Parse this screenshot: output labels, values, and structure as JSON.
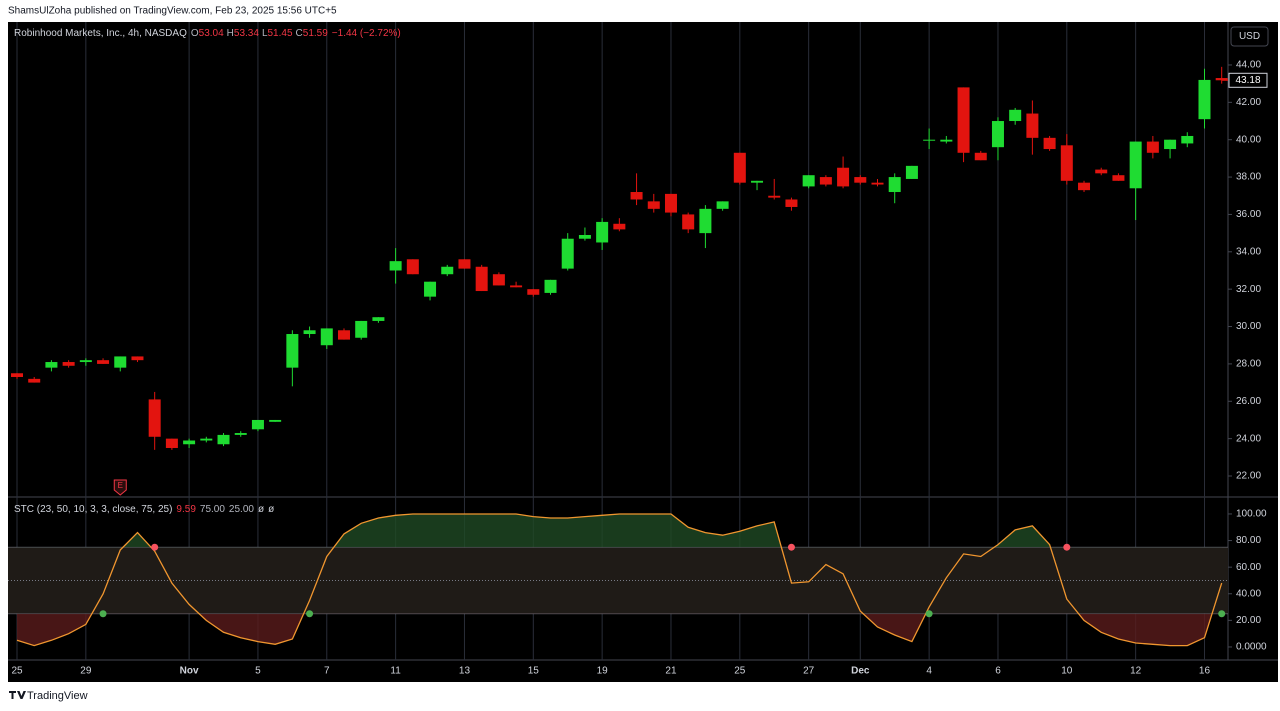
{
  "published": "ShamsUlZoha published on TradingView.com, Feb 23, 2025 15:56 UTC+5",
  "currency": "USD",
  "brand": "TradingView",
  "chart_data": [
    {
      "type": "candlestick",
      "title": "Robinhood Markets, Inc., 4h, NASDAQ",
      "ohlc_legend": [
        {
          "label": "O",
          "value": "53.04"
        },
        {
          "label": "H",
          "value": "53.34"
        },
        {
          "label": "L",
          "value": "51.45"
        },
        {
          "label": "C",
          "value": "51.59"
        }
      ],
      "change": "−1.44 (−2.72%)",
      "up_color": "#1fdc32",
      "down_color": "#e3140f",
      "categories": [
        "25",
        null,
        null,
        null,
        "29",
        null,
        null,
        null,
        null,
        null,
        "Nov",
        null,
        null,
        null,
        "5",
        null,
        null,
        null,
        "7",
        null,
        null,
        null,
        "11",
        null,
        null,
        null,
        "13",
        null,
        null,
        null,
        "15",
        null,
        null,
        null,
        "19",
        null,
        null,
        null,
        "21",
        null,
        null,
        null,
        "25",
        null,
        null,
        null,
        "27",
        null,
        null,
        "Dec",
        null,
        null,
        null,
        "4",
        null,
        null,
        null,
        "6",
        null,
        null,
        null,
        "10",
        null,
        null,
        null,
        "12",
        null,
        null,
        null,
        "16",
        null
      ],
      "open": [
        27.5,
        27.2,
        27.8,
        28.1,
        28.1,
        28.2,
        27.8,
        28.4,
        26.1,
        24.0,
        23.7,
        23.9,
        23.7,
        24.2,
        24.5,
        24.9,
        27.8,
        29.6,
        29.0,
        29.8,
        29.4,
        30.3,
        33.0,
        33.6,
        31.6,
        32.8,
        33.6,
        33.2,
        32.8,
        32.2,
        32.0,
        31.8,
        33.1,
        34.7,
        34.5,
        35.5,
        37.2,
        36.7,
        37.1,
        36.0,
        35.0,
        36.3,
        39.3,
        37.7,
        37.0,
        36.8,
        37.5,
        38.0,
        38.5,
        38.0,
        37.7,
        37.2,
        37.9,
        40.0,
        39.9,
        42.8,
        39.3,
        39.6,
        41.0,
        41.4,
        40.1,
        39.7,
        37.7,
        38.4,
        38.1,
        37.4,
        39.9,
        39.5,
        39.8,
        41.1,
        43.3
      ],
      "high": [
        27.5,
        27.3,
        28.2,
        28.2,
        28.3,
        28.3,
        28.4,
        28.4,
        26.5,
        24.0,
        24.0,
        24.1,
        24.3,
        24.4,
        25.0,
        25.0,
        29.8,
        30.0,
        29.9,
        29.9,
        30.3,
        30.5,
        34.2,
        33.6,
        32.4,
        33.3,
        33.6,
        33.3,
        32.9,
        32.4,
        32.0,
        32.5,
        35.0,
        35.3,
        35.8,
        35.8,
        38.2,
        37.1,
        37.1,
        36.1,
        36.5,
        36.7,
        39.3,
        37.8,
        37.9,
        36.9,
        38.1,
        38.1,
        39.1,
        38.1,
        37.9,
        38.2,
        38.6,
        40.6,
        40.2,
        42.8,
        39.4,
        41.2,
        41.7,
        42.1,
        40.2,
        40.3,
        37.8,
        38.5,
        38.2,
        39.9,
        40.2,
        40.0,
        40.4,
        43.8,
        43.9
      ],
      "low": [
        27.2,
        27.0,
        27.6,
        27.8,
        27.9,
        28.0,
        27.6,
        28.1,
        23.4,
        23.4,
        23.5,
        23.8,
        23.6,
        24.1,
        24.4,
        24.9,
        26.8,
        29.4,
        28.8,
        29.3,
        29.3,
        30.2,
        32.3,
        32.8,
        31.4,
        32.7,
        33.1,
        31.9,
        32.2,
        32.1,
        31.6,
        31.7,
        33.0,
        34.6,
        34.1,
        35.1,
        36.5,
        36.1,
        35.9,
        35.0,
        34.2,
        36.2,
        37.6,
        37.3,
        36.8,
        36.2,
        37.4,
        37.5,
        37.4,
        37.6,
        37.5,
        36.6,
        37.9,
        39.5,
        39.8,
        38.8,
        38.9,
        38.9,
        40.8,
        39.2,
        39.4,
        37.6,
        37.2,
        38.1,
        37.8,
        35.7,
        39.0,
        39.0,
        39.6,
        40.6,
        43.0
      ],
      "close": [
        27.3,
        27.0,
        28.1,
        27.9,
        28.2,
        28.0,
        28.4,
        28.2,
        24.1,
        23.5,
        23.9,
        24.0,
        24.2,
        24.3,
        25.0,
        25.0,
        29.6,
        29.8,
        29.9,
        29.3,
        30.3,
        30.5,
        33.5,
        32.8,
        32.4,
        33.2,
        33.1,
        31.9,
        32.2,
        32.1,
        31.7,
        32.5,
        34.7,
        34.9,
        35.6,
        35.2,
        36.8,
        36.3,
        36.1,
        35.2,
        36.3,
        36.7,
        37.7,
        37.8,
        36.9,
        36.4,
        38.1,
        37.6,
        37.5,
        37.7,
        37.6,
        38.0,
        38.6,
        40.0,
        40.0,
        39.3,
        38.9,
        41.0,
        41.6,
        40.1,
        39.5,
        37.8,
        37.3,
        38.2,
        37.8,
        39.9,
        39.3,
        40.0,
        40.2,
        43.2,
        43.18
      ],
      "last_price": 43.18,
      "earnings_marker": "E",
      "earnings_index": 6,
      "ylim": [
        20.93,
        46.3
      ],
      "yticks": [
        {
          "value": 22,
          "label": "22.00"
        },
        {
          "value": 24,
          "label": "24.00"
        },
        {
          "value": 26,
          "label": "26.00"
        },
        {
          "value": 28,
          "label": "28.00"
        },
        {
          "value": 30,
          "label": "30.00"
        },
        {
          "value": 32,
          "label": "32.00"
        },
        {
          "value": 34,
          "label": "34.00"
        },
        {
          "value": 36,
          "label": "36.00"
        },
        {
          "value": 38,
          "label": "38.00"
        },
        {
          "value": 40,
          "label": "40.00"
        },
        {
          "value": 42,
          "label": "42.00"
        },
        {
          "value": 44,
          "label": "44.00"
        }
      ]
    },
    {
      "type": "line",
      "title": "STC (23, 50, 10, 3, 3, close, 75, 25)",
      "legend_values": [
        "9.59",
        "75.00",
        "25.00",
        "ø",
        "ø"
      ],
      "color": "#f0962f",
      "values": [
        5,
        1,
        5,
        10,
        17,
        40,
        73,
        86,
        72,
        48,
        32,
        20,
        11,
        7,
        4,
        2,
        6,
        35,
        68,
        85,
        93,
        97,
        99,
        100,
        100,
        100,
        100,
        100,
        100,
        100,
        98,
        97,
        97,
        98,
        99,
        100,
        100,
        100,
        100,
        90,
        86,
        84,
        87,
        91,
        94,
        48,
        49,
        62,
        55,
        27,
        15,
        9,
        4,
        30,
        52,
        70,
        68,
        77,
        88,
        91,
        77,
        36,
        20,
        11,
        6,
        3,
        2,
        1,
        1,
        7,
        48
      ],
      "levels": [
        75,
        25
      ],
      "midline": 50,
      "buy_signal_index": [
        5,
        17,
        53,
        70
      ],
      "sell_signal_index": [
        8,
        45,
        61
      ],
      "ylim": [
        -9.8,
        112
      ],
      "yticks": [
        {
          "value": 0,
          "label": "0.0000"
        },
        {
          "value": 20,
          "label": "20.00"
        },
        {
          "value": 40,
          "label": "40.00"
        },
        {
          "value": 60,
          "label": "60.00"
        },
        {
          "value": 80,
          "label": "80.00"
        },
        {
          "value": 100,
          "label": "100.00"
        }
      ]
    }
  ]
}
